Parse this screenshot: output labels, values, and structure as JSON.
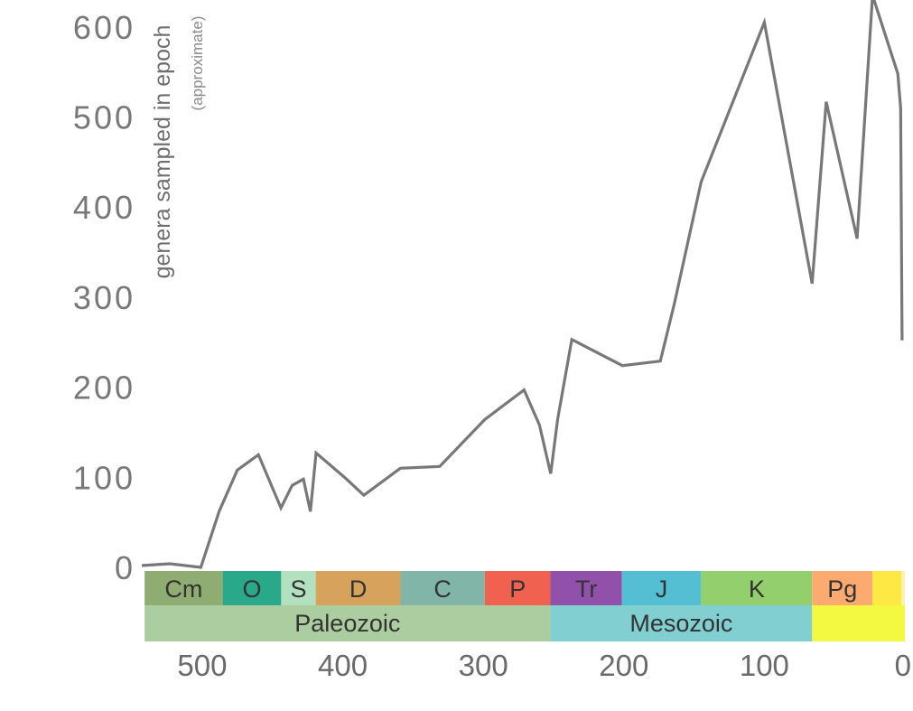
{
  "chart_data": {
    "type": "line",
    "ylabel": "genera sampled in epoch",
    "ylabel_note": "(approximate)",
    "xlim": [
      543,
      0
    ],
    "ylim": [
      0,
      600
    ],
    "x_reversed": true,
    "grid": false,
    "legend": "none",
    "line_color": "#787878",
    "yticks": [
      {
        "value": 0,
        "label": "0"
      },
      {
        "value": 100,
        "label": "100"
      },
      {
        "value": 200,
        "label": "200"
      },
      {
        "value": 300,
        "label": "300"
      },
      {
        "value": 400,
        "label": "400"
      },
      {
        "value": 500,
        "label": "500"
      },
      {
        "value": 600,
        "label": "600"
      }
    ],
    "xticks": [
      {
        "value": 500,
        "label": "500"
      },
      {
        "value": 400,
        "label": "400"
      },
      {
        "value": 300,
        "label": "300"
      },
      {
        "value": 200,
        "label": "200"
      },
      {
        "value": 100,
        "label": "100"
      },
      {
        "value": 0,
        "label": "0"
      }
    ],
    "x": [
      543,
      523,
      501,
      488,
      475,
      460,
      444,
      436,
      428,
      423,
      419,
      398,
      385,
      359,
      331,
      299,
      271,
      260,
      252,
      247,
      237,
      201,
      174,
      164,
      145,
      100,
      66,
      56,
      34,
      23,
      5,
      3,
      2
    ],
    "y": [
      2,
      4,
      0,
      62,
      108,
      125,
      66,
      91,
      98,
      62,
      127,
      99,
      80,
      110,
      112,
      164,
      197,
      158,
      104,
      165,
      253,
      224,
      229,
      293,
      428,
      605,
      315,
      517,
      365,
      635,
      548,
      510,
      252
    ],
    "periods": [
      {
        "label": "Cm",
        "start": 541,
        "end": 485.4,
        "color": "#8fad72"
      },
      {
        "label": "O",
        "start": 485.4,
        "end": 443.8,
        "color": "#2aa88a"
      },
      {
        "label": "S",
        "start": 443.8,
        "end": 419.2,
        "color": "#b3e1c0"
      },
      {
        "label": "D",
        "start": 419.2,
        "end": 358.9,
        "color": "#d7a25c"
      },
      {
        "label": "C",
        "start": 358.9,
        "end": 298.9,
        "color": "#80b5a8"
      },
      {
        "label": "P",
        "start": 298.9,
        "end": 252.2,
        "color": "#f1614f"
      },
      {
        "label": "Tr",
        "start": 252.2,
        "end": 201.3,
        "color": "#9151ab"
      },
      {
        "label": "J",
        "start": 201.3,
        "end": 145,
        "color": "#54bfd3"
      },
      {
        "label": "K",
        "start": 145,
        "end": 66,
        "color": "#93d06d"
      },
      {
        "label": "Pg",
        "start": 66,
        "end": 23.03,
        "color": "#fdaa71"
      },
      {
        "label": "",
        "start": 23.03,
        "end": 2.58,
        "color": "#fee844"
      },
      {
        "label": "",
        "start": 2.58,
        "end": 0,
        "color": "#fef3ac"
      }
    ],
    "eras": [
      {
        "label": "Paleozoic",
        "start": 541,
        "end": 252.2,
        "color": "#abcd9f"
      },
      {
        "label": "Mesozoic",
        "start": 252.2,
        "end": 66,
        "color": "#81cfd1"
      },
      {
        "label": "",
        "start": 66,
        "end": 0,
        "color": "#f3f840"
      }
    ]
  }
}
